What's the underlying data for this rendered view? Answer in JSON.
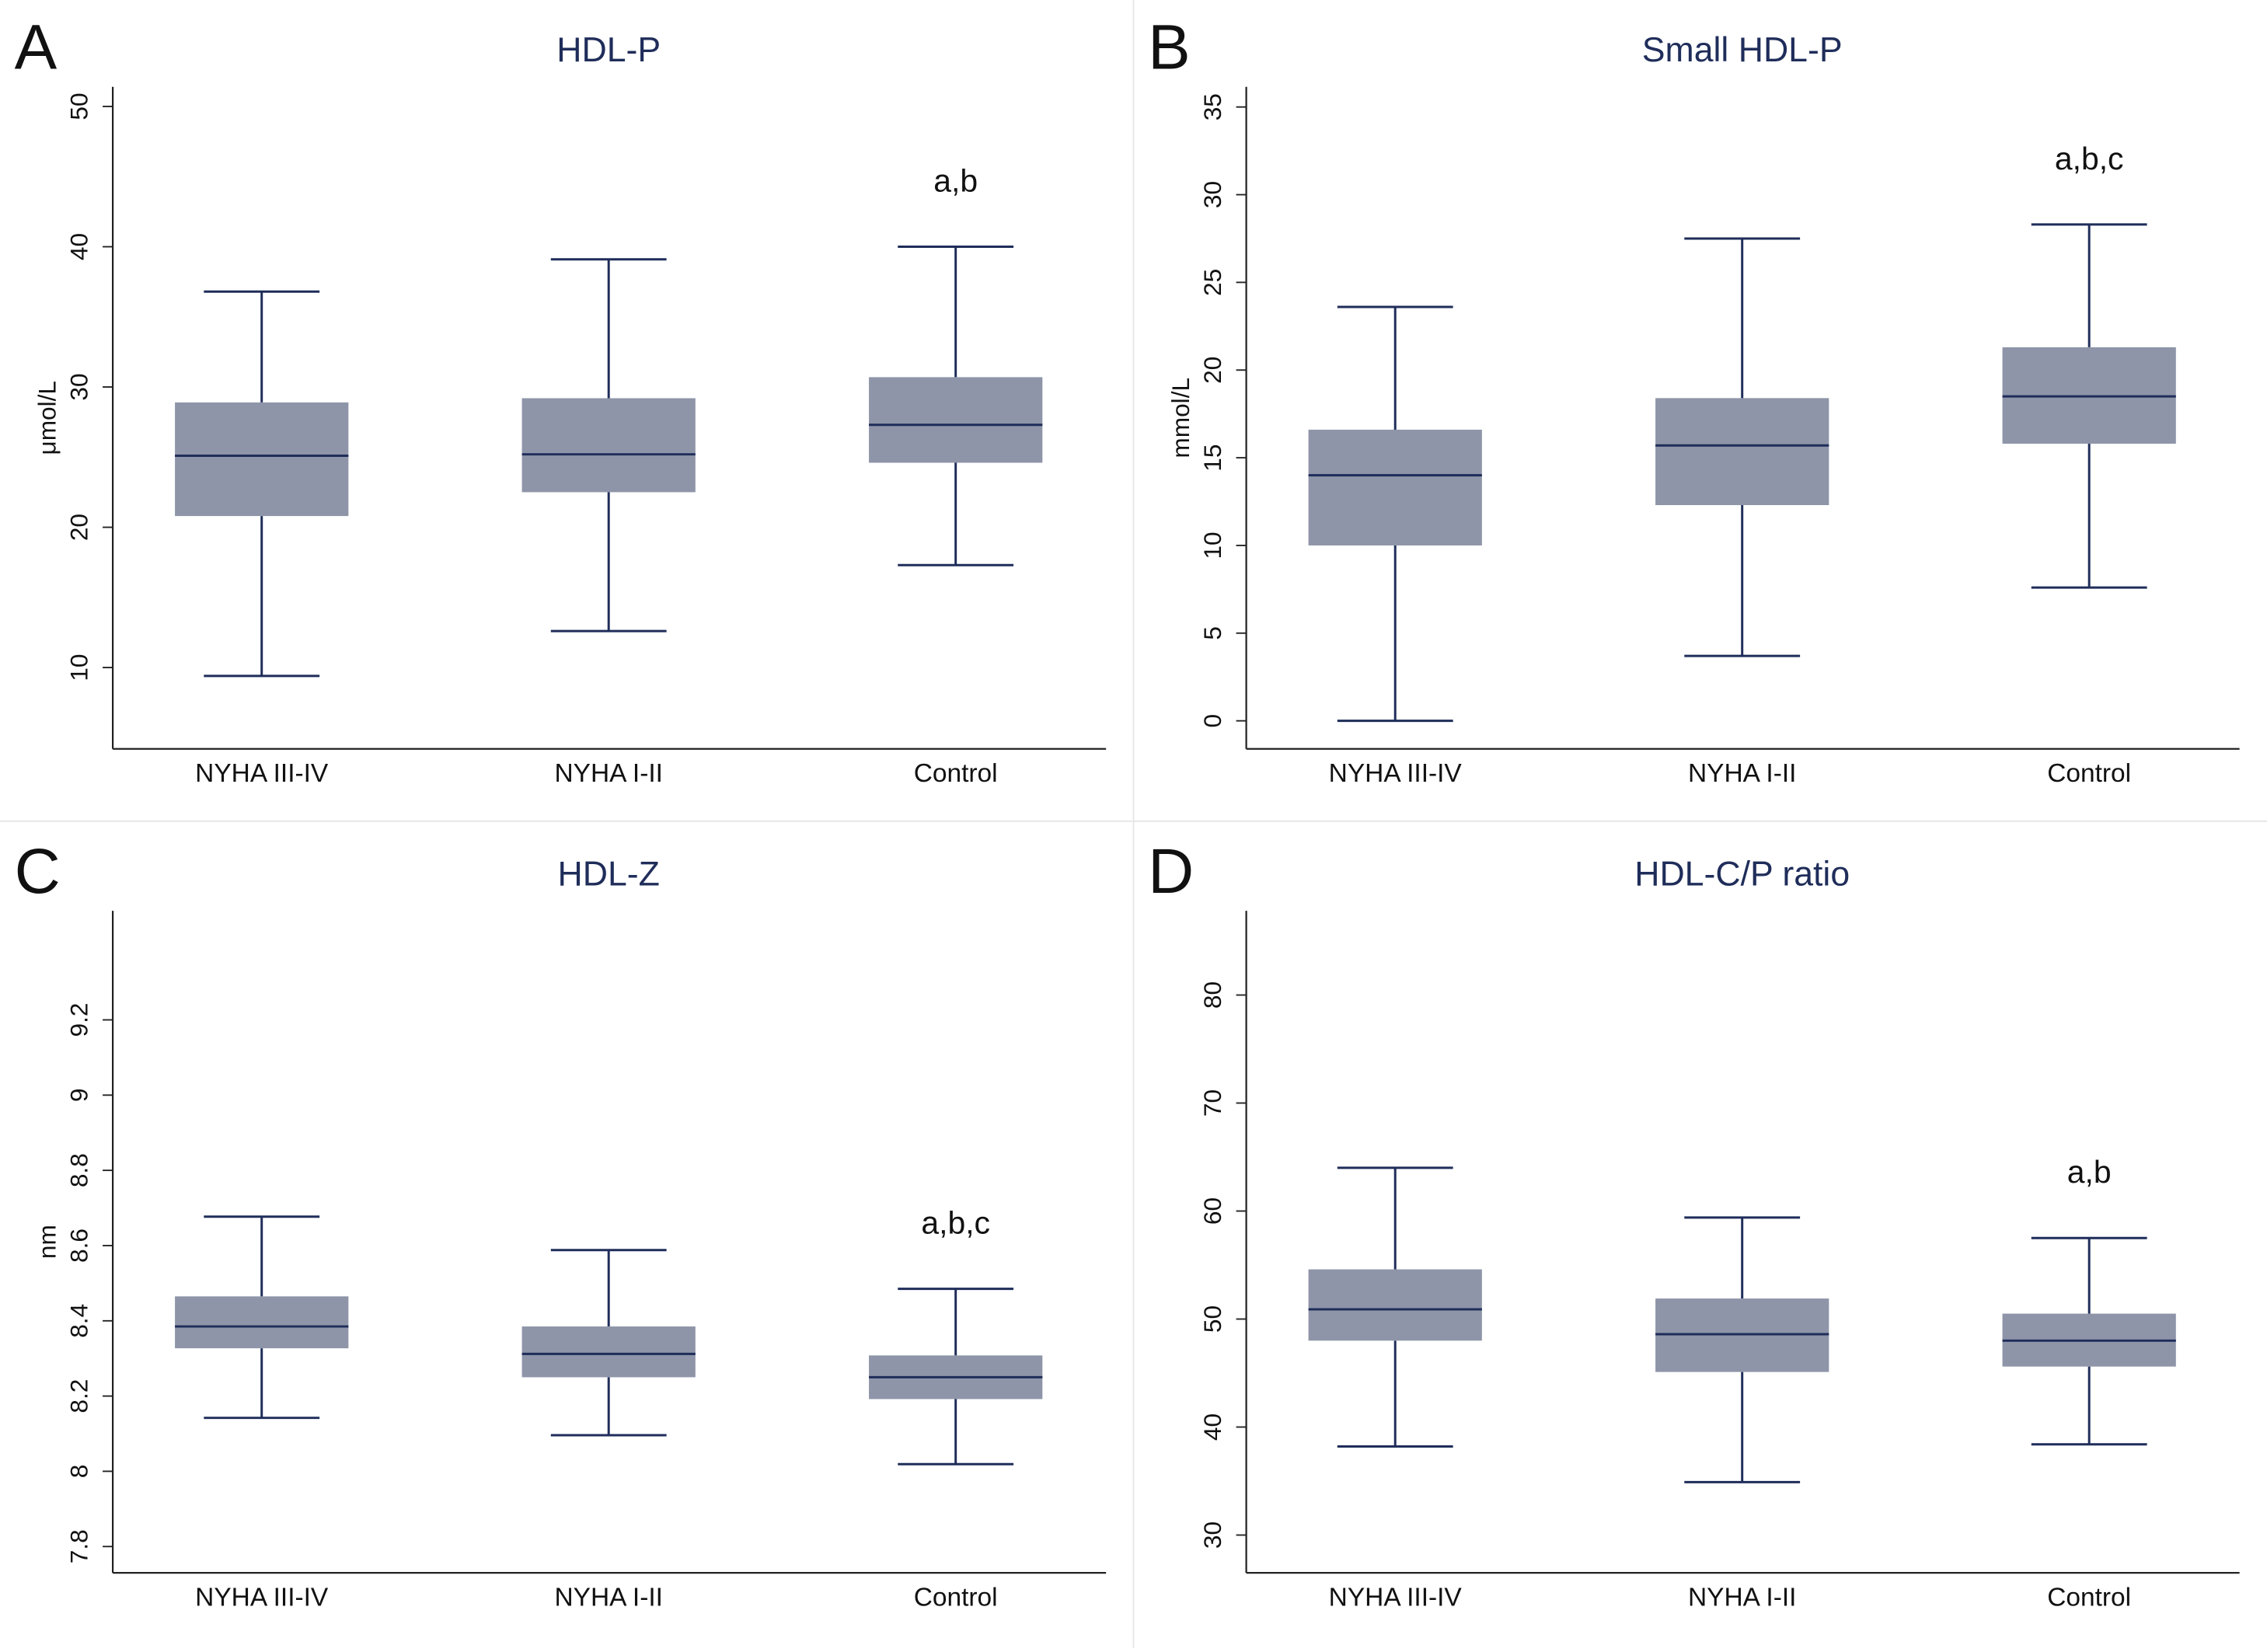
{
  "chart_data": [
    {
      "type": "box",
      "panel": "A",
      "title": "HDL-P",
      "ylabel": "μmol/L",
      "annotation": "a,b",
      "categories": [
        "NYHA III-IV",
        "NYHA I-II",
        "Control"
      ],
      "min": [
        9.4,
        12.6,
        17.3
      ],
      "q1": [
        20.8,
        22.5,
        24.6
      ],
      "median": [
        25.1,
        25.2,
        27.3
      ],
      "q3": [
        28.9,
        29.2,
        30.7
      ],
      "max": [
        36.8,
        39.1,
        40.0
      ],
      "ylim": [
        4.2,
        51.4
      ],
      "yticks": [
        10,
        20,
        30,
        40,
        50
      ],
      "color": "#8e95a8",
      "line_color": "#1f2d5a"
    },
    {
      "type": "box",
      "panel": "B",
      "title": "Small HDL-P",
      "ylabel": "mmol/L",
      "annotation": "a,b,c",
      "categories": [
        "NYHA III-IV",
        "NYHA I-II",
        "Control"
      ],
      "min": [
        0,
        3.7,
        7.6
      ],
      "q1": [
        10.0,
        12.3,
        15.8
      ],
      "median": [
        14.0,
        15.7,
        18.5
      ],
      "q3": [
        16.6,
        18.4,
        21.3
      ],
      "max": [
        23.6,
        27.5,
        28.3
      ],
      "ylim": [
        -1.6,
        36.15
      ],
      "yticks": [
        0,
        5,
        10,
        15,
        20,
        25,
        30,
        35
      ],
      "color": "#8e95a8",
      "line_color": "#1f2d5a"
    },
    {
      "type": "box",
      "panel": "C",
      "title": "HDL-Z",
      "ylabel": "nm",
      "annotation": "a,b,c",
      "categories": [
        "NYHA III-IV",
        "NYHA I-II",
        "Control"
      ],
      "min": [
        8.142,
        8.096,
        8.019
      ],
      "q1": [
        8.327,
        8.25,
        8.192
      ],
      "median": [
        8.385,
        8.312,
        8.25
      ],
      "q3": [
        8.465,
        8.385,
        8.308
      ],
      "max": [
        8.677,
        8.588,
        8.485
      ],
      "ylim": [
        7.73,
        9.49
      ],
      "yticks": [
        7.8,
        8,
        8.2,
        8.4,
        8.6,
        8.8,
        9,
        9.2
      ],
      "color": "#8e95a8",
      "line_color": "#1f2d5a"
    },
    {
      "type": "box",
      "panel": "D",
      "title": "HDL-C/P ratio",
      "ylabel": null,
      "annotation": "a,b",
      "categories": [
        "NYHA III-IV",
        "NYHA I-II",
        "Control"
      ],
      "min": [
        38.2,
        34.9,
        38.4
      ],
      "q1": [
        48.0,
        45.1,
        45.6
      ],
      "median": [
        50.9,
        48.6,
        48.0
      ],
      "q3": [
        54.6,
        51.9,
        50.5
      ],
      "max": [
        64.0,
        59.4,
        57.5
      ],
      "ylim": [
        26.5,
        87.8
      ],
      "yticks": [
        30,
        40,
        50,
        60,
        70,
        80
      ],
      "color": "#8e95a8",
      "line_color": "#1f2d5a"
    }
  ]
}
